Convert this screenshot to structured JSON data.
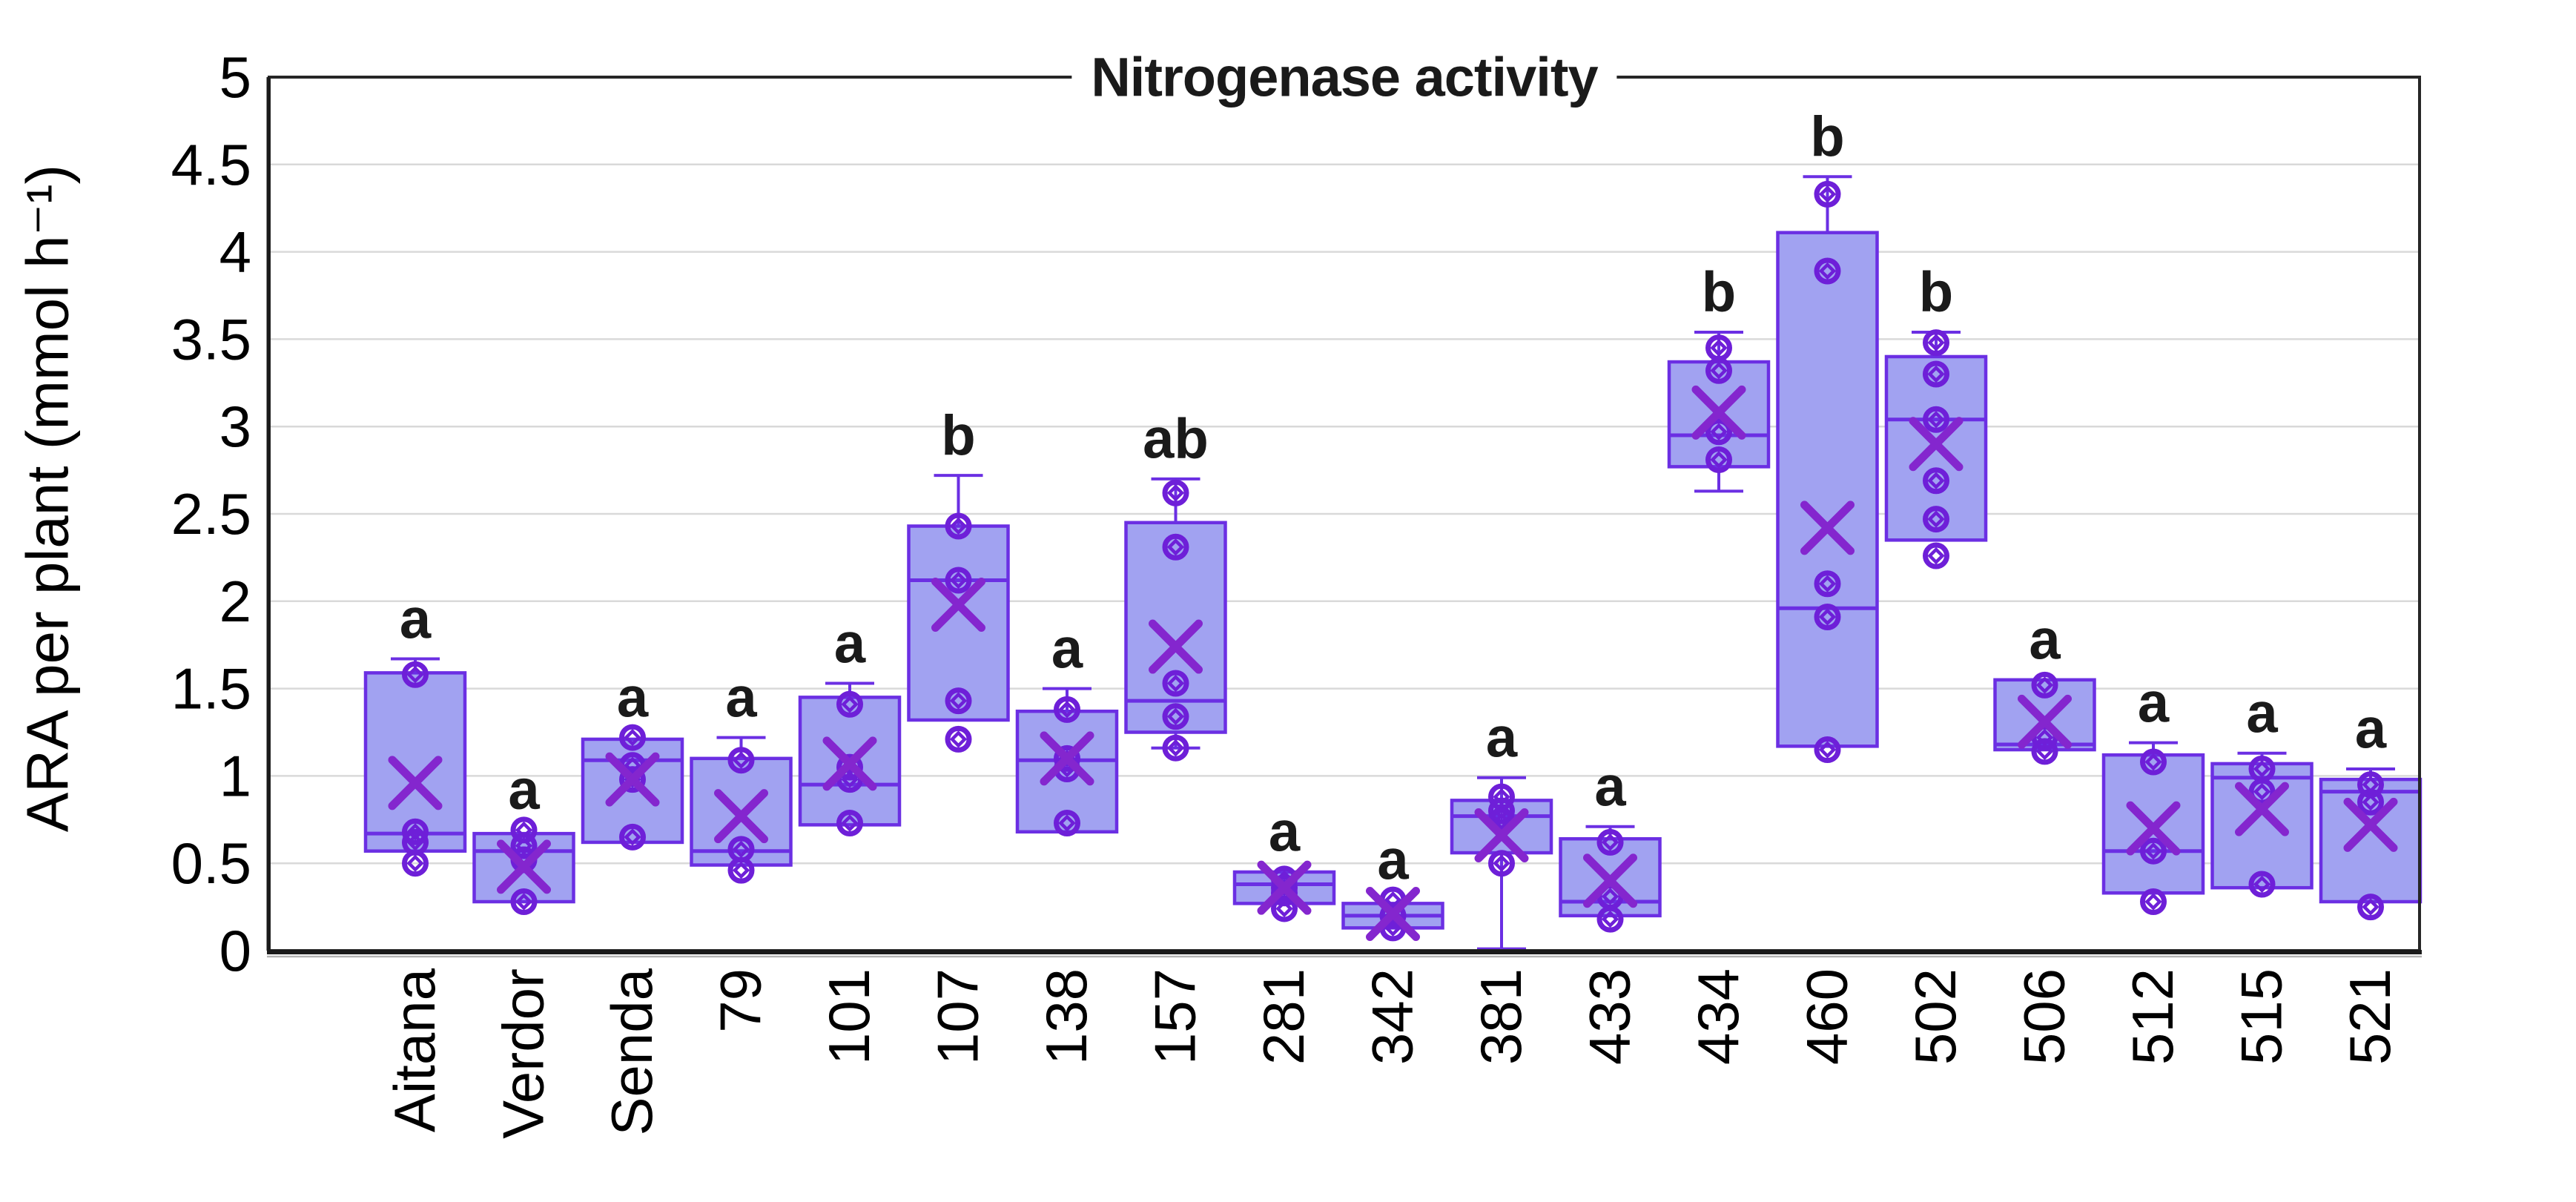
{
  "chart_data": {
    "type": "boxplot",
    "title": "Nitrogenase activity",
    "ylabel": "ARA per plant (mmol h⁻¹)",
    "ylim": [
      0,
      5
    ],
    "grid": true,
    "legend": "none",
    "y_ticks": [
      "0",
      "0.5",
      "1",
      "1.5",
      "2",
      "2.5",
      "3",
      "3.5",
      "4",
      "4.5",
      "5"
    ],
    "categories": [
      "Aitana",
      "Verdor",
      "Senda",
      "79",
      "101",
      "107",
      "138",
      "157",
      "281",
      "342",
      "381",
      "433",
      "434",
      "460",
      "502",
      "506",
      "512",
      "515",
      "521"
    ],
    "boxes": [
      {
        "label": "Aitana",
        "letter": "a",
        "q1": 0.57,
        "median": 0.67,
        "q3": 1.59,
        "mean": 0.96,
        "whisker_high": 1.67,
        "points": [
          1.58,
          0.68,
          0.62,
          0.5
        ]
      },
      {
        "label": "Verdor",
        "letter": "a",
        "q1": 0.28,
        "median": 0.57,
        "q3": 0.67,
        "mean": 0.48,
        "points": [
          0.69,
          0.6,
          0.52,
          0.28
        ]
      },
      {
        "label": "Senda",
        "letter": "a",
        "q1": 0.62,
        "median": 1.09,
        "q3": 1.21,
        "mean": 0.98,
        "points": [
          1.22,
          1.06,
          0.98,
          0.65
        ]
      },
      {
        "label": "79",
        "letter": "a",
        "q1": 0.49,
        "median": 0.57,
        "q3": 1.1,
        "mean": 0.77,
        "whisker_high": 1.22,
        "points": [
          1.09,
          0.58,
          0.46
        ]
      },
      {
        "label": "101",
        "letter": "a",
        "q1": 0.72,
        "median": 0.95,
        "q3": 1.45,
        "mean": 1.07,
        "whisker_high": 1.53,
        "points": [
          1.41,
          1.05,
          0.98,
          0.73
        ]
      },
      {
        "label": "107",
        "letter": "b",
        "q1": 1.32,
        "median": 2.12,
        "q3": 2.43,
        "mean": 1.98,
        "whisker_high": 2.72,
        "points": [
          2.43,
          2.12,
          1.43,
          1.21
        ]
      },
      {
        "label": "138",
        "letter": "a",
        "q1": 0.68,
        "median": 1.09,
        "q3": 1.37,
        "mean": 1.1,
        "whisker_high": 1.5,
        "points": [
          1.38,
          1.1,
          1.04,
          0.73
        ]
      },
      {
        "label": "157",
        "letter": "ab",
        "q1": 1.25,
        "median": 1.43,
        "q3": 2.45,
        "mean": 1.74,
        "whisker_low": 1.16,
        "whisker_high": 2.7,
        "points": [
          2.62,
          2.31,
          1.53,
          1.34,
          1.16
        ]
      },
      {
        "label": "281",
        "letter": "a",
        "q1": 0.27,
        "median": 0.38,
        "q3": 0.45,
        "mean": 0.36,
        "points": [
          0.41,
          0.36,
          0.33,
          0.24
        ]
      },
      {
        "label": "342",
        "letter": "a",
        "q1": 0.13,
        "median": 0.2,
        "q3": 0.27,
        "mean": 0.21,
        "points": [
          0.29,
          0.2,
          0.13
        ]
      },
      {
        "label": "381",
        "letter": "a",
        "q1": 0.56,
        "median": 0.77,
        "q3": 0.86,
        "mean": 0.66,
        "whisker_low": 0.01,
        "whisker_high": 0.99,
        "points": [
          0.88,
          0.8,
          0.74,
          0.5
        ]
      },
      {
        "label": "433",
        "letter": "a",
        "q1": 0.2,
        "median": 0.28,
        "q3": 0.64,
        "mean": 0.4,
        "whisker_high": 0.71,
        "points": [
          0.62,
          0.31,
          0.18
        ]
      },
      {
        "label": "434",
        "letter": "b",
        "q1": 2.77,
        "median": 2.95,
        "q3": 3.37,
        "mean": 3.08,
        "whisker_low": 2.63,
        "whisker_high": 3.54,
        "points": [
          3.45,
          3.32,
          2.97,
          2.81
        ]
      },
      {
        "label": "460",
        "letter": "b",
        "q1": 1.17,
        "median": 1.96,
        "q3": 4.11,
        "mean": 2.42,
        "whisker_high": 4.43,
        "points": [
          4.33,
          3.89,
          2.1,
          1.91,
          1.15
        ]
      },
      {
        "label": "502",
        "letter": "b",
        "q1": 2.35,
        "median": 3.04,
        "q3": 3.4,
        "mean": 2.9,
        "whisker_high": 3.54,
        "points": [
          3.48,
          3.3,
          3.04,
          2.69,
          2.47,
          2.26
        ]
      },
      {
        "label": "506",
        "letter": "a",
        "q1": 1.15,
        "median": 1.18,
        "q3": 1.55,
        "mean": 1.31,
        "points": [
          1.52,
          1.22,
          1.14
        ]
      },
      {
        "label": "512",
        "letter": "a",
        "q1": 0.33,
        "median": 0.57,
        "q3": 1.12,
        "mean": 0.7,
        "whisker_high": 1.19,
        "points": [
          1.08,
          0.57,
          0.28
        ]
      },
      {
        "label": "515",
        "letter": "a",
        "q1": 0.36,
        "median": 0.99,
        "q3": 1.07,
        "mean": 0.81,
        "whisker_high": 1.13,
        "points": [
          1.04,
          0.91,
          0.38
        ]
      },
      {
        "label": "521",
        "letter": "a",
        "q1": 0.28,
        "median": 0.91,
        "q3": 0.98,
        "mean": 0.72,
        "whisker_high": 1.04,
        "points": [
          0.95,
          0.85,
          0.25
        ]
      }
    ]
  },
  "colors": {
    "background": "#FFFFFF",
    "box_fill": "#A1A2F1",
    "box_border": "#6B2FE3",
    "mean_marker": "#8426CE",
    "point_marker": "#6E1FD8",
    "gridline": "#D9D9D9",
    "axis": "#262626",
    "axis_shadow": "#B3B3B3",
    "text": "#000000",
    "letter_color": "#1A1A1A"
  }
}
